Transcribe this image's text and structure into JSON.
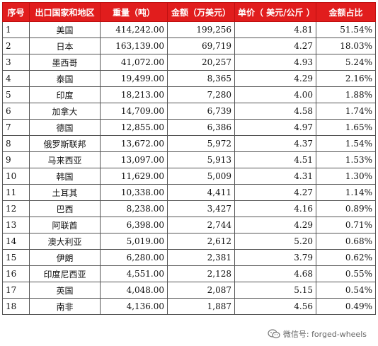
{
  "table": {
    "headers": [
      "序号",
      "出口国家和地区",
      "重量（吨）",
      "金额（万美元）",
      "单价（ 美元/公斤 ）",
      "金额占比"
    ],
    "rows": [
      [
        "1",
        "美国",
        "414,242.00",
        "199,256",
        "4.81",
        "51.54%"
      ],
      [
        "2",
        "日本",
        "163,139.00",
        "69,719",
        "4.27",
        "18.03%"
      ],
      [
        "3",
        "墨西哥",
        "41,072.00",
        "20,257",
        "4.93",
        "5.24%"
      ],
      [
        "4",
        "泰国",
        "19,499.00",
        "8,365",
        "4.29",
        "2.16%"
      ],
      [
        "5",
        "印度",
        "18,213.00",
        "7,280",
        "4.00",
        "1.88%"
      ],
      [
        "6",
        "加拿大",
        "14,709.00",
        "6,739",
        "4.58",
        "1.74%"
      ],
      [
        "7",
        "德国",
        "12,855.00",
        "6,386",
        "4.97",
        "1.65%"
      ],
      [
        "8",
        "俄罗斯联邦",
        "13,672.00",
        "5,972",
        "4.37",
        "1.54%"
      ],
      [
        "9",
        "马来西亚",
        "13,097.00",
        "5,913",
        "4.51",
        "1.53%"
      ],
      [
        "10",
        "韩国",
        "11,629.00",
        "5,009",
        "4.31",
        "1.30%"
      ],
      [
        "11",
        "土耳其",
        "10,338.00",
        "4,411",
        "4.27",
        "1.14%"
      ],
      [
        "12",
        "巴西",
        "8,238.00",
        "3,427",
        "4.16",
        "0.89%"
      ],
      [
        "13",
        "阿联酋",
        "6,398.00",
        "2,744",
        "4.29",
        "0.71%"
      ],
      [
        "14",
        "澳大利亚",
        "5,019.00",
        "2,612",
        "5.20",
        "0.68%"
      ],
      [
        "15",
        "伊朗",
        "6,280.00",
        "2,381",
        "3.79",
        "0.62%"
      ],
      [
        "16",
        "印度尼西亚",
        "4,551.00",
        "2,128",
        "4.68",
        "0.55%"
      ],
      [
        "17",
        "英国",
        "4,048.00",
        "2,087",
        "5.15",
        "0.54%"
      ],
      [
        "18",
        "南非",
        "4,136.00",
        "1,887",
        "4.56",
        "0.49%"
      ]
    ]
  },
  "colors": {
    "header_bg": "#e11d1d",
    "header_text": "#ffffff",
    "border": "#555555"
  },
  "watermark": {
    "text": "微信号: forged-wheels",
    "icon": "wechat-icon"
  }
}
